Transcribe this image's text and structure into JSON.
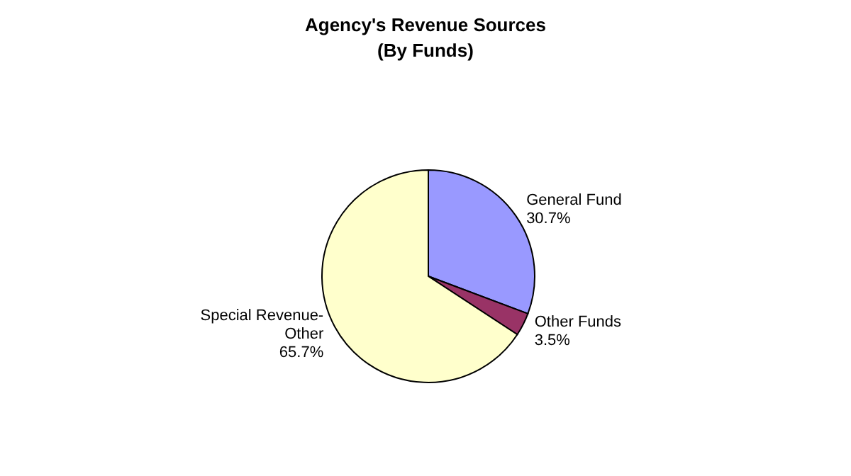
{
  "chart_data": {
    "type": "pie",
    "title": "Agency's Revenue Sources",
    "subtitle": "(By Funds)",
    "categories": [
      "General Fund",
      "Other Funds",
      "Special Revenue-Other"
    ],
    "values": [
      30.7,
      3.5,
      65.7
    ],
    "colors": [
      "#9999ff",
      "#993366",
      "#ffffcc"
    ],
    "value_labels": [
      "30.7%",
      "3.5%",
      "65.7%"
    ]
  }
}
